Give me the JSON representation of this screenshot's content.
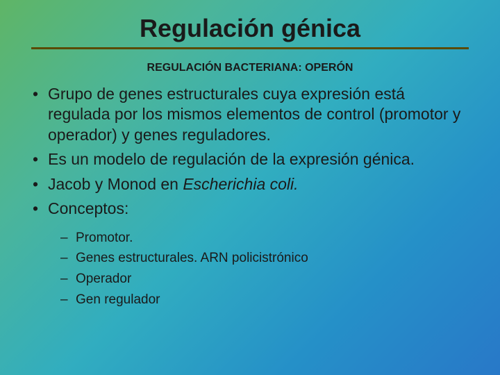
{
  "background_gradient": {
    "angle_deg": 135,
    "stops": [
      {
        "color": "#5fb566",
        "pct": 0
      },
      {
        "color": "#4bb59a",
        "pct": 25
      },
      {
        "color": "#31adc0",
        "pct": 50
      },
      {
        "color": "#2590c8",
        "pct": 75
      },
      {
        "color": "#2878c8",
        "pct": 100
      }
    ]
  },
  "title": {
    "text": "Regulación génica",
    "fontsize": 36,
    "weight": "bold",
    "color": "#1a1a1a",
    "underline_color": "#5a4a00",
    "underline_thickness": 3
  },
  "subtitle": {
    "text": "REGULACIÓN BACTERIANA: OPERÓN",
    "fontsize": 16,
    "weight": "bold",
    "color": "#1a1a1a"
  },
  "bullets": {
    "fontsize": 23,
    "color": "#1a1a1a",
    "marker": "•",
    "items": [
      {
        "segments": [
          {
            "t": "Grupo  de genes estructurales cuya expresión está regulada por los mismos elementos de control (promotor y operador) y genes reguladores."
          }
        ]
      },
      {
        "segments": [
          {
            "t": "Es un modelo de regulación de la expresión génica."
          }
        ]
      },
      {
        "segments": [
          {
            "t": "Jacob y Monod en "
          },
          {
            "t": "Escherichia coli.",
            "italic": true
          }
        ]
      },
      {
        "segments": [
          {
            "t": "Conceptos:"
          }
        ]
      }
    ]
  },
  "sub_bullets": {
    "fontsize": 19,
    "marker": "–",
    "items": [
      "Promotor.",
      "Genes estructurales. ARN policistrónico",
      "Operador",
      "Gen regulador"
    ]
  }
}
